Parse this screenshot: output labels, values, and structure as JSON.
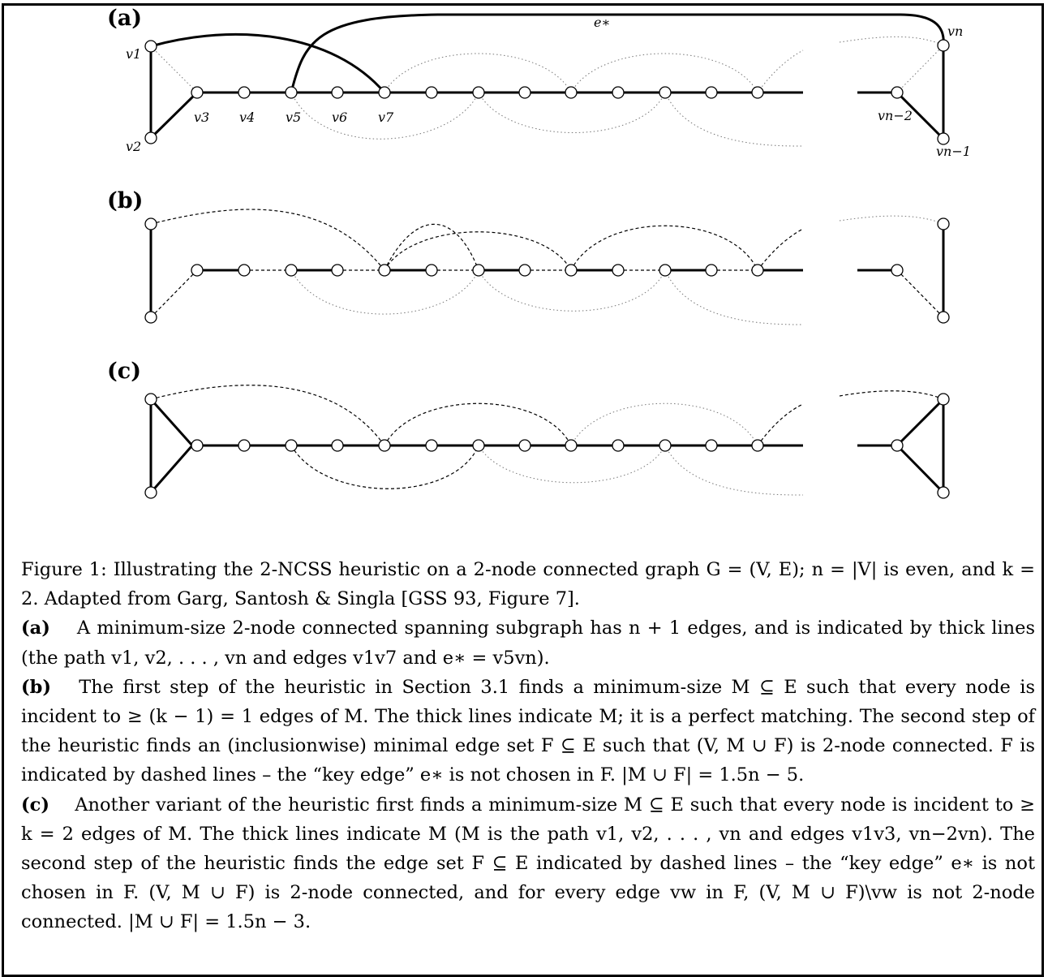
{
  "figure": {
    "panels": [
      {
        "label": "(a)"
      },
      {
        "label": "(b)"
      },
      {
        "label": "(c)"
      }
    ],
    "vertex_labels": {
      "v1": "v1",
      "v2": "v2",
      "v3": "v3",
      "v4": "v4",
      "v5": "v5",
      "v6": "v6",
      "v7": "v7",
      "vn": "vn",
      "vn2": "vn−2",
      "vn1": "vn−1",
      "estar": "e∗"
    }
  },
  "caption": {
    "intro": "Figure 1: Illustrating the 2-NCSS heuristic on a 2-node connected graph G = (V, E); n = |V| is even, and k = 2. Adapted from Garg, Santosh & Singla [GSS 93, Figure 7].",
    "a_label": "(a)",
    "a_text": "A minimum-size 2-node connected spanning subgraph has n + 1 edges, and is indicated by thick lines (the path v1, v2, . . . , vn and edges v1v7 and e∗ = v5vn).",
    "b_label": "(b)",
    "b_text": "The first step of the heuristic in Section 3.1 finds a minimum-size M ⊆ E such that every node is incident to ≥ (k − 1) = 1 edges of M. The thick lines indicate M; it is a perfect matching. The second step of the heuristic finds an (inclusionwise) minimal edge set F ⊆ E such that (V, M ∪ F) is 2-node connected. F is indicated by dashed lines – the “key edge” e∗ is not chosen in F. |M ∪ F| = 1.5n − 5.",
    "c_label": "(c)",
    "c_text": "Another variant of the heuristic first finds a minimum-size M ⊆ E such that every node is incident to ≥ k = 2 edges of M. The thick lines indicate M (M is the path v1, v2, . . . , vn and edges v1v3, vn−2vn). The second step of the heuristic finds the edge set F ⊆ E indicated by dashed lines – the “key edge” e∗ is not chosen in F. (V, M ∪ F) is 2-node connected, and for every edge vw in F, (V, M ∪ F)\\vw is not 2-node connected. |M ∪ F| = 1.5n − 3."
  }
}
